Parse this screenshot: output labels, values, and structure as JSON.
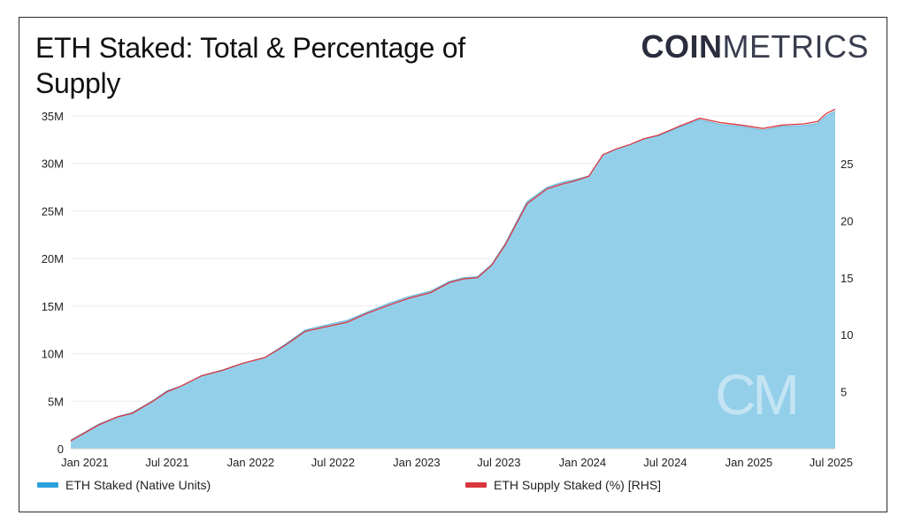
{
  "chart_data": {
    "type": "area",
    "title": "ETH Staked: Total & Percentage of Supply",
    "x": [
      "2020-12-01",
      "2021-02-01",
      "2021-03-15",
      "2021-04-15",
      "2021-06-01",
      "2021-07-01",
      "2021-08-01",
      "2021-09-15",
      "2021-11-01",
      "2021-12-15",
      "2022-02-01",
      "2022-03-15",
      "2022-05-01",
      "2022-06-15",
      "2022-08-01",
      "2022-09-15",
      "2022-11-01",
      "2022-12-15",
      "2023-02-01",
      "2023-03-15",
      "2023-04-15",
      "2023-05-15",
      "2023-06-15",
      "2023-07-15",
      "2023-09-01",
      "2023-10-15",
      "2023-11-15",
      "2023-12-15",
      "2024-01-15",
      "2024-02-15",
      "2024-03-15",
      "2024-04-15",
      "2024-05-15",
      "2024-06-15",
      "2024-08-01",
      "2024-09-15",
      "2024-11-01",
      "2024-12-15",
      "2025-02-01",
      "2025-03-15",
      "2025-05-01",
      "2025-06-01",
      "2025-06-20",
      "2025-07-10"
    ],
    "series": [
      {
        "name": "ETH Staked (Native Units)",
        "axis": "left",
        "color": "#2aa1dc",
        "values": [
          0.9,
          2.6,
          3.4,
          3.8,
          5.1,
          6.1,
          6.6,
          7.7,
          8.3,
          9.0,
          9.6,
          10.9,
          12.5,
          13.0,
          13.5,
          14.4,
          15.3,
          16.0,
          16.6,
          17.6,
          18.0,
          18.1,
          19.4,
          21.6,
          26.0,
          27.5,
          28.0,
          28.3,
          28.7,
          30.9,
          31.5,
          32.0,
          32.6,
          32.9,
          33.8,
          34.6,
          34.1,
          33.9,
          33.5,
          33.9,
          34.0,
          34.2,
          35.0,
          35.5
        ]
      },
      {
        "name": "ETH Supply Staked (%) [RHS]",
        "axis": "right",
        "color": "#d9363e",
        "values": [
          0.7,
          2.1,
          2.8,
          3.1,
          4.2,
          5.0,
          5.5,
          6.4,
          6.9,
          7.5,
          8.0,
          9.0,
          10.3,
          10.7,
          11.1,
          11.9,
          12.6,
          13.2,
          13.7,
          14.6,
          14.9,
          15.0,
          16.1,
          17.9,
          21.5,
          22.8,
          23.2,
          23.5,
          23.9,
          25.8,
          26.3,
          26.7,
          27.2,
          27.5,
          28.3,
          29.0,
          28.6,
          28.4,
          28.1,
          28.4,
          28.5,
          28.7,
          29.4,
          29.8
        ]
      }
    ],
    "yaxis_left": {
      "min": 0,
      "max": 35,
      "ticks": [
        0,
        5,
        10,
        15,
        20,
        25,
        30,
        35
      ],
      "tick_labels": [
        "0",
        "5M",
        "10M",
        "15M",
        "20M",
        "25M",
        "30M",
        "35M"
      ]
    },
    "yaxis_right": {
      "min": 0,
      "max": 29.2,
      "ticks": [
        5,
        10,
        15,
        20,
        25
      ],
      "tick_labels": [
        "5",
        "10",
        "15",
        "20",
        "25"
      ]
    },
    "xaxis": {
      "min": "2020-12-01",
      "max": "2025-07-10",
      "ticks": [
        "2021-01-01",
        "2021-07-01",
        "2022-01-01",
        "2022-07-01",
        "2023-01-01",
        "2023-07-01",
        "2024-01-01",
        "2024-07-01",
        "2025-01-01",
        "2025-07-01"
      ],
      "tick_labels": [
        "Jan 2021",
        "Jul 2021",
        "Jan 2022",
        "Jul 2022",
        "Jan 2023",
        "Jul 2023",
        "Jan 2024",
        "Jul 2024",
        "Jan 2025",
        "Jul 2025"
      ]
    },
    "grid": true,
    "legend_placement": "bottom"
  },
  "brand": {
    "logo_bold": "COIN",
    "logo_light": "METRICS",
    "watermark": "CM",
    "area_color": "#94cfea",
    "grid_color": "#ececec"
  }
}
